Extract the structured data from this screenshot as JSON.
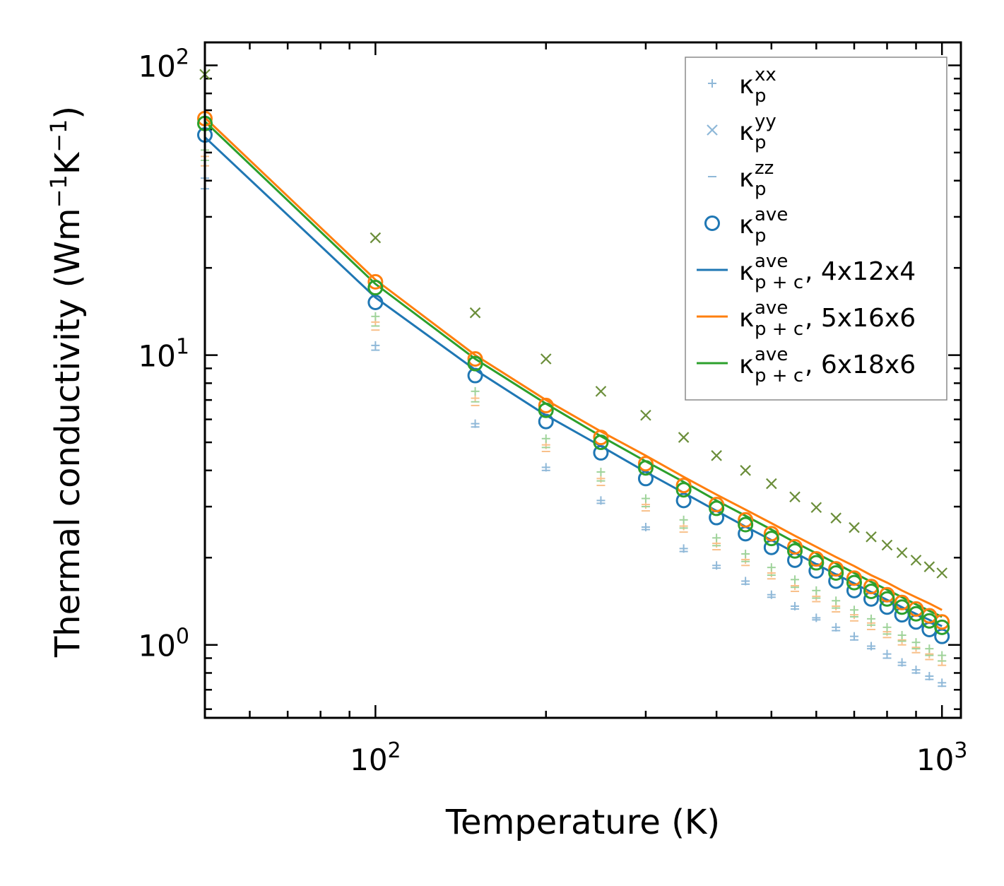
{
  "chart_data": {
    "type": "scatter",
    "x_scale": "log",
    "y_scale": "log",
    "xlabel": "Temperature (K)",
    "ylabel_main": "Thermal conductivity (Wm",
    "ylabel_sup1": "−1",
    "ylabel_mid": "K",
    "ylabel_sup2": "−1",
    "ylabel_end": ")",
    "xlim": [
      50,
      1080
    ],
    "ylim": [
      0.56,
      120
    ],
    "x_ticks": [
      {
        "base": "10",
        "exp": "2",
        "value": 100
      },
      {
        "base": "10",
        "exp": "3",
        "value": 1000
      }
    ],
    "y_ticks": [
      {
        "base": "10",
        "exp": "0",
        "value": 1
      },
      {
        "base": "10",
        "exp": "1",
        "value": 10
      },
      {
        "base": "10",
        "exp": "2",
        "value": 100
      }
    ],
    "x": [
      50,
      100,
      150,
      200,
      250,
      300,
      350,
      400,
      450,
      500,
      550,
      600,
      650,
      700,
      750,
      800,
      850,
      900,
      950,
      1000
    ],
    "colors": {
      "blue": "#1f77b4",
      "orange": "#ff7f0e",
      "green": "#2ca02c",
      "olive": "#6b8e3a",
      "light_blue": "#8fb8d8",
      "light_orange": "#f8c08a",
      "light_green": "#9fd39a"
    },
    "series": [
      {
        "name": "kxx_4x12x4",
        "color_key": "light_blue",
        "marker": "plus",
        "values": [
          40.8,
          10.8,
          5.8,
          4.1,
          3.15,
          2.55,
          2.15,
          1.88,
          1.66,
          1.49,
          1.36,
          1.24,
          1.15,
          1.07,
          0.99,
          0.93,
          0.87,
          0.82,
          0.78,
          0.74
        ]
      },
      {
        "name": "kzz_4x12x4",
        "color_key": "light_blue",
        "marker": "minus",
        "values": [
          37.5,
          10.4,
          5.65,
          4.0,
          3.08,
          2.5,
          2.1,
          1.84,
          1.62,
          1.46,
          1.33,
          1.22,
          1.12,
          1.04,
          0.97,
          0.9,
          0.85,
          0.8,
          0.76,
          0.72
        ]
      },
      {
        "name": "kxx_5x16x6",
        "color_key": "light_orange",
        "marker": "plus",
        "values": [
          48.5,
          13.0,
          7.1,
          4.9,
          3.75,
          3.05,
          2.57,
          2.24,
          1.97,
          1.77,
          1.6,
          1.47,
          1.36,
          1.27,
          1.19,
          1.11,
          1.04,
          0.98,
          0.93,
          0.88
        ]
      },
      {
        "name": "kzz_5x16x6",
        "color_key": "light_orange",
        "marker": "minus",
        "values": [
          45.0,
          12.2,
          6.7,
          4.65,
          3.55,
          2.9,
          2.45,
          2.13,
          1.88,
          1.69,
          1.53,
          1.41,
          1.3,
          1.21,
          1.13,
          1.06,
          1.0,
          0.94,
          0.89,
          0.85
        ]
      },
      {
        "name": "kxx_6x18x6",
        "color_key": "light_green",
        "marker": "plus",
        "values": [
          51.0,
          13.6,
          7.5,
          5.15,
          3.95,
          3.2,
          2.7,
          2.34,
          2.06,
          1.85,
          1.68,
          1.54,
          1.42,
          1.32,
          1.23,
          1.15,
          1.08,
          1.02,
          0.97,
          0.92
        ]
      },
      {
        "name": "kzz_6x18x6",
        "color_key": "light_green",
        "marker": "minus",
        "values": [
          47.0,
          12.6,
          6.9,
          4.8,
          3.68,
          3.0,
          2.53,
          2.2,
          1.94,
          1.74,
          1.58,
          1.45,
          1.34,
          1.25,
          1.17,
          1.09,
          1.03,
          0.97,
          0.92,
          0.88
        ]
      },
      {
        "name": "kyy",
        "color_key": "olive",
        "marker": "x",
        "values": [
          93,
          25.4,
          14.0,
          9.7,
          7.5,
          6.2,
          5.2,
          4.5,
          4.0,
          3.6,
          3.24,
          2.98,
          2.74,
          2.54,
          2.36,
          2.21,
          2.08,
          1.96,
          1.86,
          1.77
        ]
      },
      {
        "name": "kave_4x12x4",
        "color_key": "blue",
        "marker": "circle",
        "values": [
          57.5,
          15.2,
          8.5,
          5.9,
          4.6,
          3.75,
          3.15,
          2.75,
          2.42,
          2.17,
          1.96,
          1.8,
          1.66,
          1.54,
          1.44,
          1.35,
          1.27,
          1.2,
          1.13,
          1.07
        ]
      },
      {
        "name": "kave_5x16x6",
        "color_key": "orange",
        "marker": "circle",
        "values": [
          65.5,
          17.9,
          9.7,
          6.7,
          5.2,
          4.22,
          3.55,
          3.05,
          2.7,
          2.42,
          2.18,
          1.98,
          1.83,
          1.7,
          1.59,
          1.49,
          1.4,
          1.33,
          1.26,
          1.2
        ]
      },
      {
        "name": "kave_6x18x6",
        "color_key": "green",
        "marker": "circle",
        "values": [
          63.0,
          17.1,
          9.35,
          6.45,
          5.0,
          4.08,
          3.43,
          2.96,
          2.6,
          2.33,
          2.11,
          1.92,
          1.77,
          1.64,
          1.53,
          1.44,
          1.35,
          1.28,
          1.21,
          1.15
        ]
      },
      {
        "name": "line_4x12x4",
        "color_key": "blue",
        "marker": "line",
        "values": [
          56.5,
          15.8,
          8.9,
          6.2,
          4.85,
          3.95,
          3.35,
          2.9,
          2.56,
          2.3,
          2.08,
          1.9,
          1.75,
          1.63,
          1.52,
          1.43,
          1.35,
          1.28,
          1.22,
          1.16
        ]
      },
      {
        "name": "line_5x16x6",
        "color_key": "orange",
        "marker": "line",
        "values": [
          66.0,
          18.2,
          10.0,
          7.0,
          5.45,
          4.5,
          3.8,
          3.3,
          2.93,
          2.63,
          2.38,
          2.18,
          2.01,
          1.87,
          1.74,
          1.64,
          1.54,
          1.46,
          1.39,
          1.32
        ]
      },
      {
        "name": "line_6x18x6",
        "color_key": "green",
        "marker": "line",
        "values": [
          64.0,
          17.6,
          9.7,
          6.8,
          5.25,
          4.3,
          3.65,
          3.15,
          2.79,
          2.5,
          2.26,
          2.07,
          1.91,
          1.77,
          1.65,
          1.55,
          1.46,
          1.38,
          1.31,
          1.25
        ]
      }
    ],
    "legend": {
      "placement": "top-right",
      "entries": [
        {
          "marker": "plus",
          "color_key": "light_blue",
          "symbol": "κ",
          "sub": "p",
          "sup": "xx",
          "suffix": ""
        },
        {
          "marker": "x",
          "color_key": "light_blue",
          "symbol": "κ",
          "sub": "p",
          "sup": "yy",
          "suffix": ""
        },
        {
          "marker": "minus",
          "color_key": "light_blue",
          "symbol": "κ",
          "sub": "p",
          "sup": "zz",
          "suffix": ""
        },
        {
          "marker": "circle",
          "color_key": "blue",
          "symbol": "κ",
          "sub": "p",
          "sup": "ave",
          "suffix": ""
        },
        {
          "marker": "line",
          "color_key": "blue",
          "symbol": "κ",
          "sub": "p + c",
          "sup": "ave",
          "suffix": ", 4x12x4"
        },
        {
          "marker": "line",
          "color_key": "orange",
          "symbol": "κ",
          "sub": "p + c",
          "sup": "ave",
          "suffix": ", 5x16x6"
        },
        {
          "marker": "line",
          "color_key": "green",
          "symbol": "κ",
          "sub": "p + c",
          "sup": "ave",
          "suffix": ", 6x18x6"
        }
      ]
    }
  }
}
